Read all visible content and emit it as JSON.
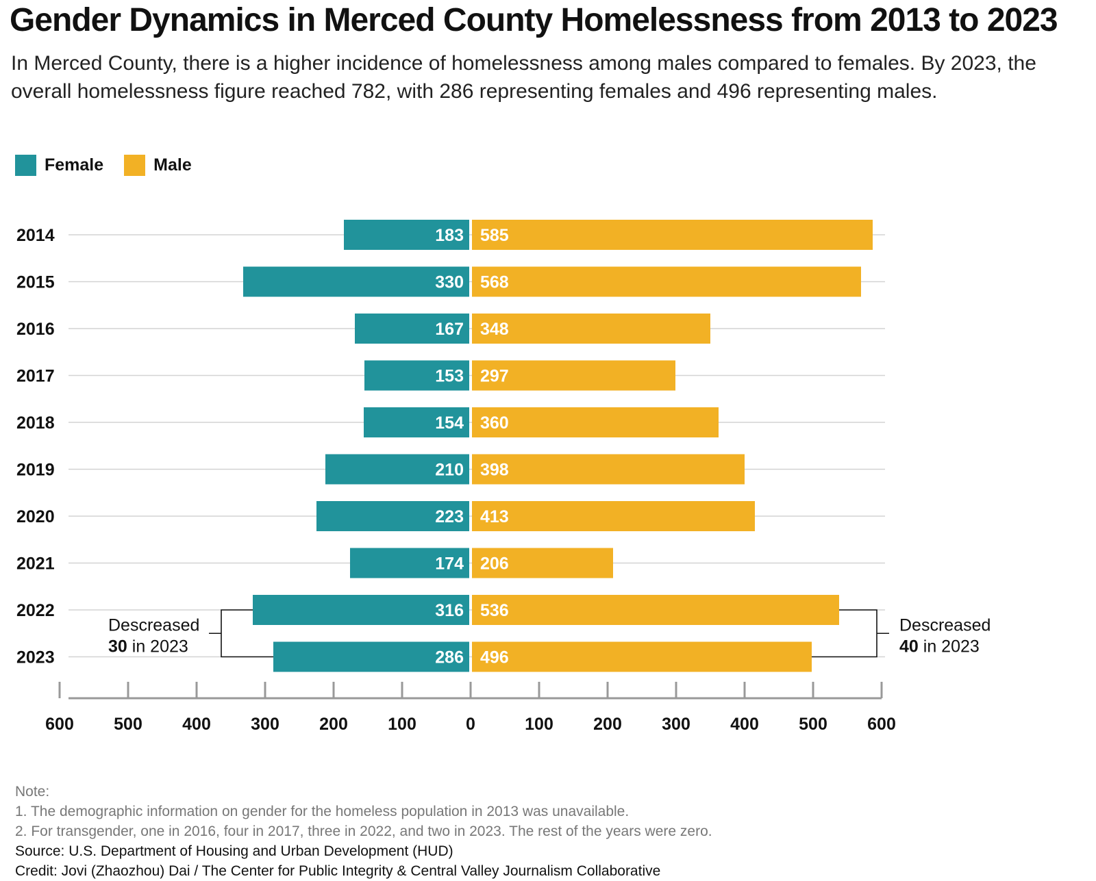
{
  "header": {
    "title": "Gender Dynamics in Merced County Homelessness from 2013 to 2023",
    "subtitle": "In Merced County, there is a higher incidence of homelessness among males compared to females. By 2023, the overall homelessness figure reached 782, with 286 representing females and 496 representing males."
  },
  "legend": {
    "female_label": "Female",
    "male_label": "Male"
  },
  "colors": {
    "female": "#21939b",
    "male": "#f2b125",
    "gridline": "#d3d3d3",
    "axis": "#999999"
  },
  "chart_data": {
    "type": "bar",
    "orientation": "horizontal-butterfly",
    "categories": [
      "2014",
      "2015",
      "2016",
      "2017",
      "2018",
      "2019",
      "2020",
      "2021",
      "2022",
      "2023"
    ],
    "series": [
      {
        "name": "Female",
        "values": [
          183,
          330,
          167,
          153,
          154,
          210,
          223,
          174,
          316,
          286
        ]
      },
      {
        "name": "Male",
        "values": [
          585,
          568,
          348,
          297,
          360,
          398,
          413,
          206,
          536,
          496
        ]
      }
    ],
    "xlim": [
      -600,
      600
    ],
    "x_ticks": [
      "600",
      "500",
      "400",
      "300",
      "200",
      "100",
      "0",
      "100",
      "200",
      "300",
      "400",
      "500",
      "600"
    ],
    "legend_position": "top-left",
    "grid": true,
    "annotations": [
      {
        "side": "left",
        "line1": "Descreased",
        "bold": "30",
        "rest": " in 2023"
      },
      {
        "side": "right",
        "line1": "Descreased",
        "bold": "40",
        "rest": " in 2023"
      }
    ]
  },
  "notes": {
    "heading": "Note:",
    "line1": "1. The demographic information on gender for the homeless population in 2013 was unavailable.",
    "line2": "2. For transgender, one in 2016, four in 2017, three in 2022, and two in 2023. The rest of the years were zero.",
    "source": "Source: U.S. Department of Housing and Urban Development (HUD)",
    "credit": "Credit: Jovi (Zhaozhou) Dai / The Center for Public Integrity & Central Valley Journalism Collaborative"
  }
}
